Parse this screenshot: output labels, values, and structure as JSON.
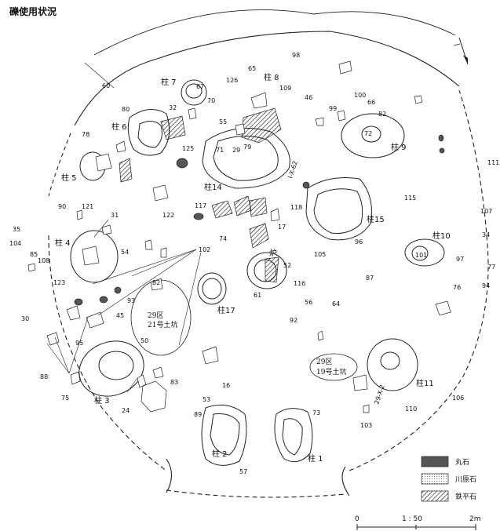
{
  "title": "礫使用状況",
  "pillars": [
    {
      "label": "柱 1"
    },
    {
      "label": "柱 2"
    },
    {
      "label": "柱 3"
    },
    {
      "label": "柱 4"
    },
    {
      "label": "柱 5"
    },
    {
      "label": "柱 6"
    },
    {
      "label": "柱 7"
    },
    {
      "label": "柱 8"
    },
    {
      "label": "柱 9"
    },
    {
      "label": "柱10"
    },
    {
      "label": "柱11"
    },
    {
      "label": "柱14"
    },
    {
      "label": "柱15"
    },
    {
      "label": "柱17"
    }
  ],
  "hearth": "炉",
  "pits": [
    {
      "area": "29区",
      "name": "21号土坑"
    },
    {
      "area": "29区",
      "name": "19号土坑"
    }
  ],
  "grid_points": [
    "I-X-62",
    "29-X-2"
  ],
  "numbers": [
    "98",
    "65",
    "60",
    "126",
    "109",
    "46",
    "100",
    "66",
    "99",
    "82",
    "72",
    "80",
    "67",
    "70",
    "32",
    "55",
    "78",
    "125",
    "71",
    "29",
    "79",
    "111",
    "115",
    "90",
    "121",
    "122",
    "117",
    "118",
    "17",
    "107",
    "35",
    "104",
    "31",
    "34",
    "54",
    "74",
    "102",
    "105",
    "96",
    "101",
    "97",
    "85",
    "108",
    "52",
    "77",
    "94",
    "116",
    "87",
    "123",
    "82",
    "61",
    "76",
    "56",
    "64",
    "93",
    "45",
    "92",
    "30",
    "50",
    "95",
    "88",
    "75",
    "24",
    "83",
    "16",
    "53",
    "89",
    "73",
    "103",
    "110",
    "106",
    "57"
  ],
  "legend": [
    {
      "label": "丸石",
      "color": "#555555",
      "pattern": "solid"
    },
    {
      "label": "川原石",
      "color": "#bbbbbb",
      "pattern": "dots"
    },
    {
      "label": "鉄平石",
      "color": "#333333",
      "pattern": "hatch"
    }
  ],
  "scale": {
    "start": "0",
    "mid": "1 : 50",
    "end": "2m"
  }
}
